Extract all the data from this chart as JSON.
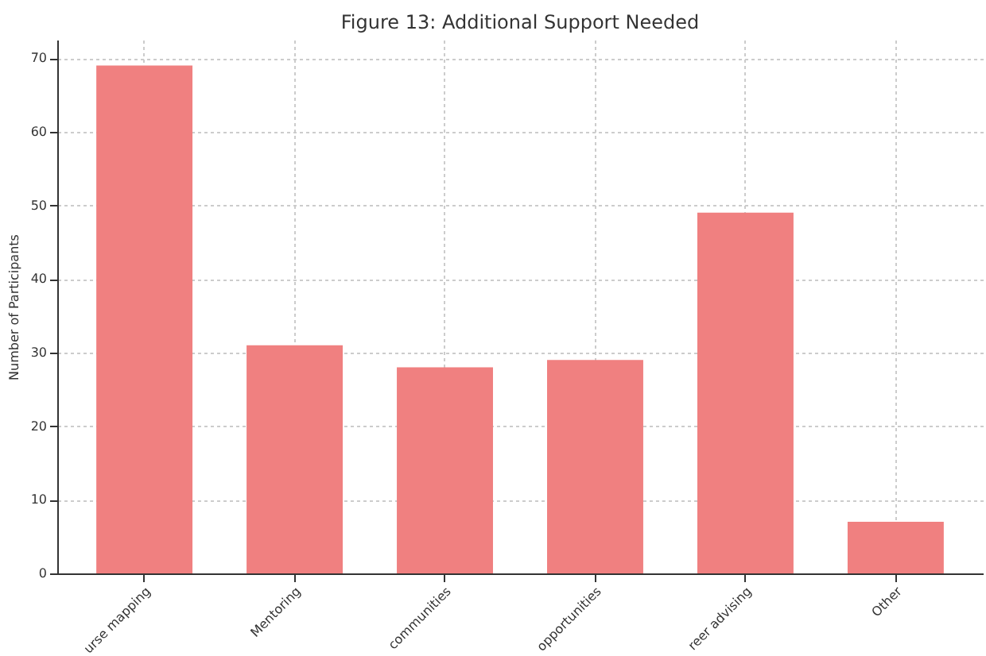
{
  "chart_data": {
    "type": "bar",
    "title": "Figure 13: Additional Support Needed",
    "ylabel": "Number of Participants",
    "categories": [
      "urse mapping",
      "Mentoring",
      "communities",
      "opportunities",
      "reer advising",
      "Other"
    ],
    "values": [
      69,
      31,
      28,
      29,
      49,
      7
    ],
    "color": "#f08080",
    "ylim": [
      0,
      72.5
    ],
    "yticks": [
      0,
      10,
      20,
      30,
      40,
      50,
      60,
      70
    ],
    "grid": true
  }
}
